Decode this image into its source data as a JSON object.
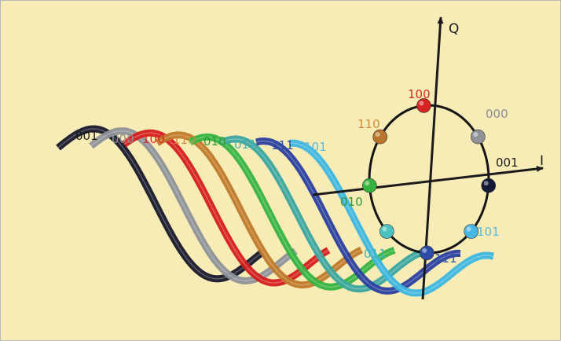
{
  "wave_labels": [
    {
      "text": "001",
      "color": "#1b1b1b"
    },
    {
      "text": "000",
      "color": "#8a8f96"
    },
    {
      "text": "100",
      "color": "#d82a22"
    },
    {
      "text": "110",
      "color": "#d08a3a"
    },
    {
      "text": "010",
      "color": "#2e9a36"
    },
    {
      "text": "011",
      "color": "#3fb3b1"
    },
    {
      "text": "111",
      "color": "#2f4fa6"
    },
    {
      "text": "101",
      "color": "#5ab8dc"
    }
  ],
  "wave_colors": [
    "#17182c",
    "#8d9299",
    "#d51e1f",
    "#c07a2a",
    "#35b440",
    "#3aa7a0",
    "#2a3fa0",
    "#3cb6e0"
  ],
  "constellation": {
    "i_axis_label": "I",
    "q_axis_label": "Q",
    "points": [
      {
        "label": "100",
        "color": "#d82a22",
        "sphere": "#d72322"
      },
      {
        "label": "000",
        "color": "#8a8f96",
        "sphere": "#8f9398"
      },
      {
        "label": "110",
        "color": "#d08a3a",
        "sphere": "#b9752a"
      },
      {
        "label": "001",
        "color": "#1b1b1b",
        "sphere": "#141a36"
      },
      {
        "label": "010",
        "color": "#2e9a36",
        "sphere": "#37b23f"
      },
      {
        "label": "101",
        "color": "#5ab8dc",
        "sphere": "#47b7e4"
      },
      {
        "label": "011",
        "color": "#3fb3b1",
        "sphere": "#4cc2c0"
      },
      {
        "label": "111",
        "color": "#2f4fa6",
        "sphere": "#2c4ca8"
      }
    ]
  }
}
